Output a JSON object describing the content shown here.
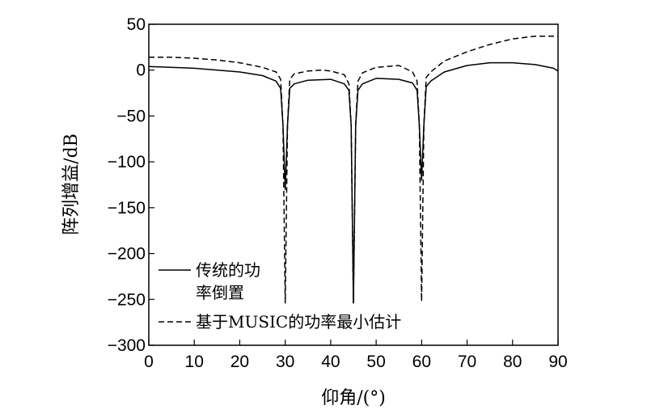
{
  "chart_data": {
    "type": "line",
    "xlabel": "仰角/(°)",
    "ylabel": "阵列增益/dB",
    "xlim": [
      0,
      90
    ],
    "ylim": [
      -300,
      50
    ],
    "xticks": [
      0,
      10,
      20,
      30,
      40,
      50,
      60,
      70,
      80,
      90
    ],
    "yticks": [
      50,
      0,
      -50,
      -100,
      -150,
      -200,
      -250,
      -300
    ],
    "grid": false,
    "legend_position": "bottom-left",
    "series": [
      {
        "name": "传统的功率倒置",
        "style": "solid",
        "x": [
          0,
          10,
          20,
          25,
          28,
          29,
          29.5,
          30,
          30.5,
          31,
          32,
          35,
          40,
          43,
          44,
          44.5,
          45,
          45.5,
          46,
          47,
          50,
          55,
          58,
          59,
          59.5,
          60,
          60.5,
          61,
          62,
          65,
          70,
          75,
          80,
          85,
          89,
          90
        ],
        "y": [
          4,
          2,
          -2,
          -6,
          -12,
          -20,
          -60,
          -130,
          -60,
          -20,
          -15,
          -11,
          -10,
          -15,
          -22,
          -60,
          -254,
          -60,
          -22,
          -15,
          -9,
          -10,
          -14,
          -22,
          -60,
          -120,
          -60,
          -18,
          -12,
          -2,
          5,
          8,
          8,
          6,
          2,
          -1
        ]
      },
      {
        "name": "基于MUSIC的功率最小估计",
        "style": "dashed",
        "x": [
          0,
          5,
          10,
          15,
          20,
          25,
          28,
          29,
          29.5,
          30,
          30.5,
          31,
          32,
          35,
          38,
          40,
          43,
          44,
          44.5,
          45,
          45.5,
          46,
          47,
          50,
          55,
          58,
          59,
          59.5,
          60,
          60.5,
          61,
          62,
          65,
          70,
          75,
          80,
          85,
          90
        ],
        "y": [
          14,
          14,
          13,
          11,
          8,
          3,
          -2,
          -10,
          -60,
          -254,
          -60,
          -10,
          -4,
          -1,
          0,
          -1,
          -5,
          -15,
          -60,
          -254,
          -60,
          -12,
          -3,
          3,
          5,
          -2,
          -12,
          -60,
          -252,
          -60,
          -8,
          -2,
          10,
          20,
          28,
          34,
          37,
          37
        ]
      }
    ]
  }
}
